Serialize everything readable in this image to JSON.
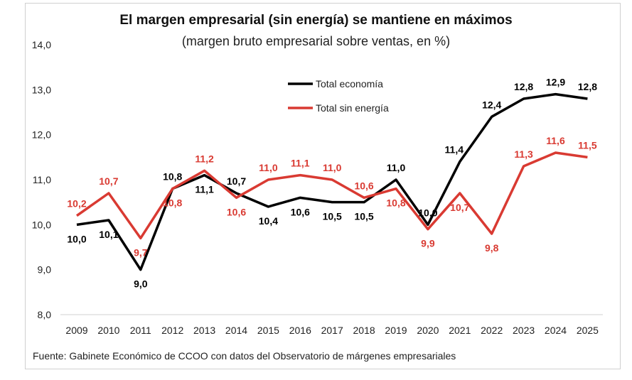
{
  "chart_data": {
    "type": "line",
    "title": "El margen empresarial (sin energía) se mantiene en máximos",
    "subtitle": "(margen bruto empresarial sobre ventas, en %)",
    "source": "Fuente: Gabinete Económico de CCOO con datos del Observatorio de márgenes empresariales",
    "categories": [
      "2009",
      "2010",
      "2011",
      "2012",
      "2013",
      "2014",
      "2015",
      "2016",
      "2017",
      "2018",
      "2019",
      "2020",
      "2021",
      "2022",
      "2023",
      "2024",
      "2025"
    ],
    "ylim": [
      8,
      14
    ],
    "yticks": [
      "8,0",
      "9,0",
      "10,0",
      "11,0",
      "12,0",
      "13,0",
      "14,0"
    ],
    "grid": false,
    "legend": "top-center",
    "series": [
      {
        "name": "Total economía",
        "color": "#000000",
        "values": [
          10.0,
          10.1,
          9.0,
          10.8,
          11.1,
          10.7,
          10.4,
          10.6,
          10.5,
          10.5,
          11.0,
          10.0,
          11.4,
          12.4,
          12.8,
          12.9,
          12.8
        ],
        "labels": [
          "10,0",
          "10,1",
          "9,0",
          "10,8",
          "11,1",
          "10,7",
          "10,4",
          "10,6",
          "10,5",
          "10,5",
          "11,0",
          "10,0",
          "11,4",
          "12,4",
          "12,8",
          "12,9",
          "12,8"
        ]
      },
      {
        "name": "Total sin energía",
        "color": "#d93a32",
        "values": [
          10.2,
          10.7,
          9.7,
          10.8,
          11.2,
          10.6,
          11.0,
          11.1,
          11.0,
          10.6,
          10.8,
          9.9,
          10.7,
          9.8,
          11.3,
          11.6,
          11.5
        ],
        "labels": [
          "10,2",
          "10,7",
          "9,7",
          "10,8",
          "11,2",
          "10,6",
          "11,0",
          "11,1",
          "11,0",
          "10,6",
          "10,8",
          "9,9",
          "10,7",
          "9,8",
          "11,3",
          "11,6",
          "11,5"
        ]
      }
    ]
  }
}
